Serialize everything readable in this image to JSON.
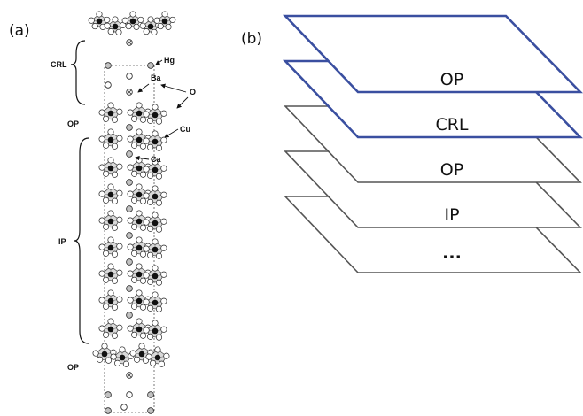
{
  "panels": {
    "a": {
      "label": "(a)",
      "annotations": {
        "crl": "CRL",
        "op_top": "OP",
        "ip": "IP",
        "op_bottom": "OP",
        "hg": "Hg",
        "ba": "Ba",
        "o": "O",
        "cu": "Cu",
        "ca": "Ca"
      }
    },
    "b": {
      "label": "(b)",
      "layers": [
        {
          "label": "OP",
          "color": "#3a4fa0"
        },
        {
          "label": "CRL",
          "color": "#3a4fa0"
        },
        {
          "label": "OP",
          "color": "#555555"
        },
        {
          "label": "IP",
          "color": "#555555"
        },
        {
          "label": "...",
          "color": "#555555"
        }
      ]
    }
  }
}
